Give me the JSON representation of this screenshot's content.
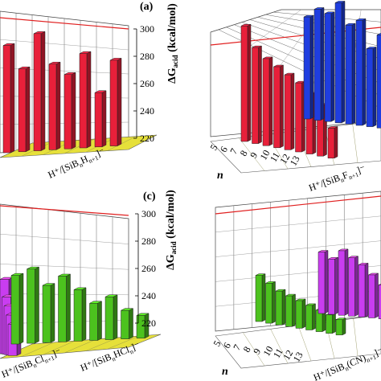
{
  "chart_data": [
    {
      "type": "bar",
      "panel_label": "(a)",
      "zlabel": "ΔG_acid (kcal/mol)",
      "zlim": [
        210,
        300
      ],
      "zticks": [
        "300",
        "280",
        "260",
        "240",
        "220"
      ],
      "reference_line": 297,
      "series": [
        {
          "label_html": "H⁺/[SiB<sub>n</sub>H<sub>n+1</sub>]⁻",
          "color": "#e8203a",
          "values": [
            285,
            268,
            292,
            270,
            262,
            276,
            248,
            270
          ]
        }
      ]
    },
    {
      "type": "bar",
      "panel_label": "",
      "zlim": [
        210,
        300
      ],
      "reference_line": 297,
      "xlabel": "n",
      "xticks": [
        "5",
        "6",
        "7",
        "8",
        "9",
        "10",
        "11",
        "12",
        "13"
      ],
      "series": [
        {
          "label_html": "H⁺/[SiB<sub>n</sub>F<sub>n+1</sub>]⁻",
          "color": "#e8203a",
          "values": [
            287,
            274,
            268,
            264,
            260,
            256,
            250,
            244,
            230
          ]
        },
        {
          "label_html": "",
          "color": "#1f3ee0",
          "values": [
            278,
            284,
            282,
            290,
            276,
            280,
            262,
            272,
            248
          ]
        }
      ]
    },
    {
      "type": "bar",
      "panel_label": "(c)",
      "zlabel": "ΔG_acid (kcal/mol)",
      "zlim": [
        210,
        300
      ],
      "zticks": [
        "300",
        "280",
        "260",
        "240",
        "220"
      ],
      "reference_line": 297,
      "series": [
        {
          "label_html": "H⁺/[SiB<sub>n</sub>Cl<sub>n+1</sub>]⁻",
          "color": "#c93df0",
          "values": [
            262,
            250,
            244,
            238,
            232
          ]
        },
        {
          "label_html": "H⁺/[SiB<sub>n</sub>HCl<sub>n</sub>]⁻",
          "color": "#4cc21e",
          "values": [
            258,
            262,
            250,
            256,
            246,
            236,
            240,
            230,
            226
          ]
        }
      ]
    },
    {
      "type": "bar",
      "panel_label": "",
      "zlim": [
        210,
        300
      ],
      "reference_line": 297,
      "xlabel": "n",
      "xticks": [
        "5",
        "6",
        "7",
        "8",
        "9",
        "10",
        "11",
        "12",
        "13"
      ],
      "series": [
        {
          "label_html": "H⁺/[SiB<sub>n</sub>(CN)<sub>n+1</sub>]⁻",
          "color": "#4cc21e",
          "values": [
            240,
            236,
            232,
            230,
            228,
            226,
            224,
            222,
            220
          ]
        },
        {
          "label_html": "",
          "color": "#c93df0",
          "values": [
            250,
            246,
            252,
            248,
            244,
            238,
            232,
            240,
            230
          ]
        }
      ]
    }
  ]
}
